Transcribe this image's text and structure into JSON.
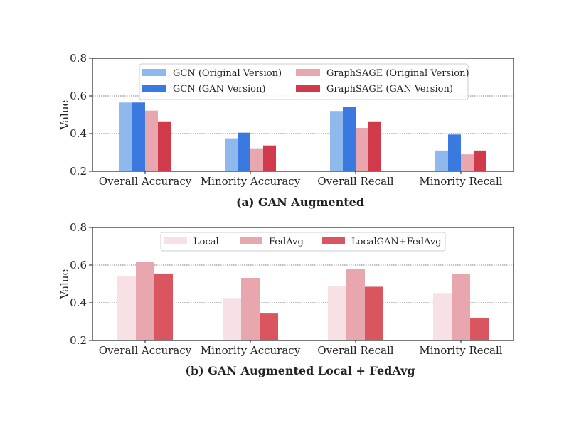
{
  "chart_data": [
    {
      "type": "bar",
      "title": "(a) GAN Augmented",
      "xlabel": "",
      "ylabel": "Value",
      "ylim": [
        0.2,
        0.8
      ],
      "yticks": [
        "0.2",
        "0.4",
        "0.6",
        "0.8"
      ],
      "grid": "horizontal dotted",
      "legend_position": "top-center, 2 columns",
      "categories": [
        "Overall Accuracy",
        "Minority Accuracy",
        "Overall Recall",
        "Minority Recall"
      ],
      "series": [
        {
          "name": "GCN (Original Version)",
          "color": "#8fb8ec",
          "values": [
            0.565,
            0.375,
            0.52,
            0.31
          ]
        },
        {
          "name": "GCN (GAN Version)",
          "color": "#3a7ae0",
          "values": [
            0.565,
            0.405,
            0.542,
            0.395
          ]
        },
        {
          "name": "GraphSAGE (Original Version)",
          "color": "#e8a7ae",
          "values": [
            0.522,
            0.322,
            0.43,
            0.29
          ]
        },
        {
          "name": "GraphSAGE (GAN Version)",
          "color": "#d03a4a",
          "values": [
            0.465,
            0.337,
            0.465,
            0.31
          ]
        }
      ]
    },
    {
      "type": "bar",
      "title": "(b) GAN Augmented Local + FedAvg",
      "xlabel": "",
      "ylabel": "Value",
      "ylim": [
        0.2,
        0.8
      ],
      "yticks": [
        "0.2",
        "0.4",
        "0.6",
        "0.8"
      ],
      "grid": "horizontal dotted",
      "legend_position": "top-center, 1 row",
      "categories": [
        "Overall Accuracy",
        "Minority Accuracy",
        "Overall Recall",
        "Minority Recall"
      ],
      "series": [
        {
          "name": "Local",
          "color": "#f8e1e4",
          "values": [
            0.54,
            0.425,
            0.49,
            0.452
          ]
        },
        {
          "name": "FedAvg",
          "color": "#e8a7ae",
          "values": [
            0.618,
            0.532,
            0.578,
            0.552
          ]
        },
        {
          "name": "LocalGAN+FedAvg",
          "color": "#d9555f",
          "values": [
            0.555,
            0.343,
            0.485,
            0.318
          ]
        }
      ]
    }
  ]
}
